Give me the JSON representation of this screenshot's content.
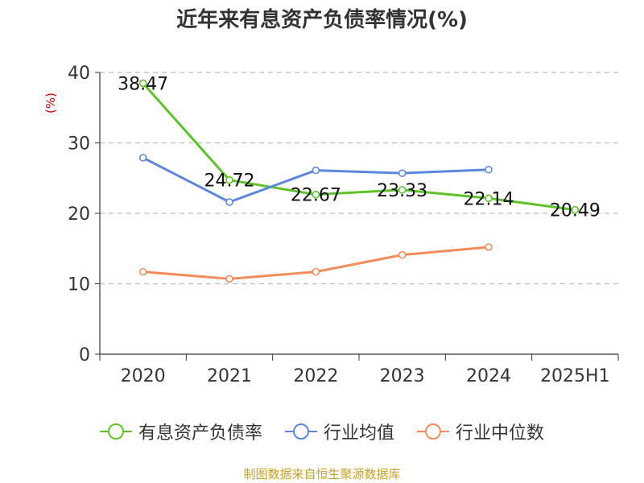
{
  "chart_data": {
    "type": "line",
    "title": "近年来有息资产负债率情况(%)",
    "ylabel": "(%)",
    "categories": [
      "2020",
      "2021",
      "2022",
      "2023",
      "2024",
      "2025H1"
    ],
    "yticks": [
      "0",
      "10",
      "20",
      "30",
      "40"
    ],
    "ylim": [
      0,
      40
    ],
    "grid": true,
    "legend_position": "bottom",
    "series": [
      {
        "name": "有息资产负债率",
        "color": "#5cc427",
        "values": [
          38.47,
          24.72,
          22.67,
          23.33,
          22.14,
          20.49
        ],
        "labels": [
          "38.47",
          "24.72",
          "22.67",
          "23.33",
          "22.14",
          "20.49"
        ]
      },
      {
        "name": "行业均值",
        "color": "#5b87dc",
        "values": [
          27.9,
          21.6,
          26.1,
          25.7,
          26.2,
          null
        ]
      },
      {
        "name": "行业中位数",
        "color": "#f48c5a",
        "values": [
          11.7,
          10.7,
          11.7,
          14.1,
          15.2,
          null
        ]
      }
    ]
  },
  "source": "制图数据来自恒生聚源数据库"
}
